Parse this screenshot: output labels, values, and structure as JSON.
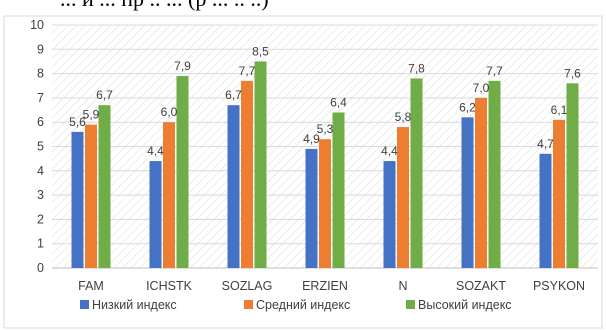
{
  "header_fragment": "... и ... пр .. ... (р ... .. ..)",
  "chart_data": {
    "type": "bar",
    "categories": [
      "FAM",
      "ICHSTK",
      "SOZLAG",
      "ERZIEN",
      "N",
      "SOZAKT",
      "PSYKON"
    ],
    "series": [
      {
        "name": "Низкий индекс",
        "color": "#4472C4",
        "values": [
          5.6,
          4.4,
          6.7,
          4.9,
          4.4,
          6.2,
          4.7
        ]
      },
      {
        "name": "Средний индекс",
        "color": "#ED7D31",
        "values": [
          5.9,
          6.0,
          7.7,
          5.3,
          5.8,
          7.0,
          6.1
        ]
      },
      {
        "name": "Высокий индекс",
        "color": "#70AD47",
        "values": [
          6.7,
          7.9,
          8.5,
          6.4,
          7.8,
          7.7,
          7.6
        ]
      }
    ],
    "data_labels": [
      [
        "5,6",
        "4,4",
        "6,7",
        "4,9",
        "4,4",
        "6,2",
        "4,7"
      ],
      [
        "5,9",
        "6,0",
        "7,7",
        "5,3",
        "5,8",
        "7,0",
        "6,1"
      ],
      [
        "6,7",
        "7,9",
        "8,5",
        "6,4",
        "7,8",
        "7,7",
        "7,6"
      ]
    ],
    "ylim": [
      0,
      10
    ],
    "yticks": [
      "0",
      "1",
      "2",
      "3",
      "4",
      "5",
      "6",
      "7",
      "8",
      "9",
      "10"
    ],
    "grid": true,
    "legend_position": "bottom",
    "title": "",
    "xlabel": "",
    "ylabel": ""
  }
}
